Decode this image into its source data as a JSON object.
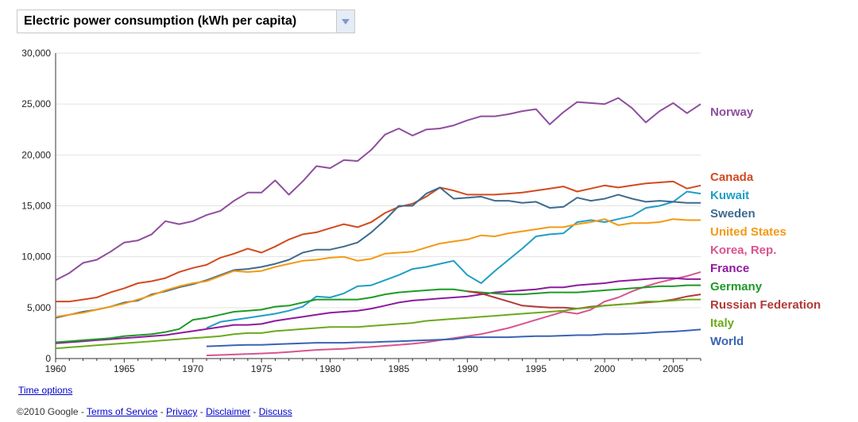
{
  "selector": {
    "label": "Electric power consumption (kWh per capita)"
  },
  "links": {
    "time_options": "Time options"
  },
  "footer": {
    "copyright": "©2010 Google",
    "sep": " - ",
    "terms": "Terms of Service",
    "privacy": "Privacy",
    "disclaimer": "Disclaimer",
    "discuss": "Discuss"
  },
  "chart_data": {
    "type": "line",
    "title": "Electric power consumption (kWh per capita)",
    "xlabel": "",
    "ylabel": "",
    "xlim": [
      1960,
      2007
    ],
    "ylim": [
      0,
      30000
    ],
    "yticks": [
      0,
      5000,
      10000,
      15000,
      20000,
      25000,
      30000
    ],
    "ytick_labels": [
      "0",
      "5,000",
      "10,000",
      "15,000",
      "20,000",
      "25,000",
      "30,000"
    ],
    "xticks": [
      1960,
      1965,
      1970,
      1975,
      1980,
      1985,
      1990,
      1995,
      2000,
      2005
    ],
    "xtick_labels": [
      "1960",
      "1965",
      "1970",
      "1975",
      "1980",
      "1985",
      "1990",
      "1995",
      "2000",
      "2005"
    ],
    "grid": true,
    "legend": "right, labels at line ends",
    "series": [
      {
        "name": "Norway",
        "color": "#8e4e9e",
        "x": [
          1960,
          1961,
          1962,
          1963,
          1964,
          1965,
          1966,
          1967,
          1968,
          1969,
          1970,
          1971,
          1972,
          1973,
          1974,
          1975,
          1976,
          1977,
          1978,
          1979,
          1980,
          1981,
          1982,
          1983,
          1984,
          1985,
          1986,
          1987,
          1988,
          1989,
          1990,
          1991,
          1992,
          1993,
          1994,
          1995,
          1996,
          1997,
          1998,
          1999,
          2000,
          2001,
          2002,
          2003,
          2004,
          2005,
          2006,
          2007
        ],
        "y": [
          7700,
          8400,
          9400,
          9700,
          10500,
          11400,
          11600,
          12200,
          13500,
          13200,
          13500,
          14100,
          14500,
          15500,
          16300,
          16300,
          17500,
          16100,
          17400,
          18900,
          18700,
          19500,
          19400,
          20500,
          22000,
          22600,
          21900,
          22500,
          22600,
          22900,
          23400,
          23800,
          23800,
          24000,
          24300,
          24500,
          23000,
          24200,
          25200,
          25100,
          25000,
          25600,
          24600,
          23200,
          24300,
          25100,
          24100,
          25000
        ]
      },
      {
        "name": "Canada",
        "color": "#d24a1f",
        "x": [
          1960,
          1961,
          1962,
          1963,
          1964,
          1965,
          1966,
          1967,
          1968,
          1969,
          1970,
          1971,
          1972,
          1973,
          1974,
          1975,
          1976,
          1977,
          1978,
          1979,
          1980,
          1981,
          1982,
          1983,
          1984,
          1985,
          1986,
          1987,
          1988,
          1989,
          1990,
          1991,
          1992,
          1993,
          1994,
          1995,
          1996,
          1997,
          1998,
          1999,
          2000,
          2001,
          2002,
          2003,
          2004,
          2005,
          2006,
          2007
        ],
        "y": [
          5600,
          5600,
          5800,
          6000,
          6500,
          6900,
          7400,
          7600,
          7900,
          8500,
          8900,
          9200,
          9900,
          10300,
          10800,
          10400,
          11000,
          11700,
          12200,
          12400,
          12800,
          13200,
          12900,
          13400,
          14300,
          14900,
          15200,
          15900,
          16800,
          16500,
          16100,
          16100,
          16100,
          16200,
          16300,
          16500,
          16700,
          16900,
          16400,
          16700,
          17000,
          16800,
          17000,
          17200,
          17300,
          17400,
          16700,
          17000
        ]
      },
      {
        "name": "Kuwait",
        "color": "#1f9ec4",
        "x": [
          1971,
          1972,
          1973,
          1974,
          1975,
          1976,
          1977,
          1978,
          1979,
          1980,
          1981,
          1982,
          1983,
          1984,
          1985,
          1986,
          1987,
          1988,
          1989,
          1990,
          1991,
          1992,
          1993,
          1994,
          1995,
          1996,
          1997,
          1998,
          1999,
          2000,
          2001,
          2002,
          2003,
          2004,
          2005,
          2006,
          2007
        ],
        "y": [
          3000,
          3600,
          3800,
          4000,
          4200,
          4400,
          4700,
          5100,
          6100,
          6000,
          6400,
          7100,
          7200,
          7700,
          8200,
          8800,
          9000,
          9300,
          9600,
          8200,
          7400,
          8600,
          9700,
          10800,
          12000,
          12200,
          12300,
          13400,
          13600,
          13400,
          13700,
          14000,
          14800,
          15000,
          15400,
          16400,
          16200
        ]
      },
      {
        "name": "Sweden",
        "color": "#3d6b8f",
        "x": [
          1960,
          1961,
          1962,
          1963,
          1964,
          1965,
          1966,
          1967,
          1968,
          1969,
          1970,
          1971,
          1972,
          1973,
          1974,
          1975,
          1976,
          1977,
          1978,
          1979,
          1980,
          1981,
          1982,
          1983,
          1984,
          1985,
          1986,
          1987,
          1988,
          1989,
          1990,
          1991,
          1992,
          1993,
          1994,
          1995,
          1996,
          1997,
          1998,
          1999,
          2000,
          2001,
          2002,
          2003,
          2004,
          2005,
          2006,
          2007
        ],
        "y": [
          4000,
          4300,
          4600,
          4800,
          5100,
          5500,
          5700,
          6300,
          6600,
          7000,
          7300,
          7700,
          8200,
          8700,
          8800,
          9000,
          9300,
          9700,
          10400,
          10700,
          10700,
          11000,
          11400,
          12400,
          13600,
          15000,
          15000,
          16200,
          16800,
          15700,
          15800,
          15900,
          15500,
          15500,
          15300,
          15400,
          14800,
          14900,
          15800,
          15500,
          15700,
          16100,
          15700,
          15400,
          15500,
          15400,
          15300,
          15300
        ]
      },
      {
        "name": "United States",
        "color": "#f29a12",
        "x": [
          1960,
          1961,
          1962,
          1963,
          1964,
          1965,
          1966,
          1967,
          1968,
          1969,
          1970,
          1971,
          1972,
          1973,
          1974,
          1975,
          1976,
          1977,
          1978,
          1979,
          1980,
          1981,
          1982,
          1983,
          1984,
          1985,
          1986,
          1987,
          1988,
          1989,
          1990,
          1991,
          1992,
          1993,
          1994,
          1995,
          1996,
          1997,
          1998,
          1999,
          2000,
          2001,
          2002,
          2003,
          2004,
          2005,
          2006,
          2007
        ],
        "y": [
          4100,
          4300,
          4500,
          4800,
          5100,
          5400,
          5800,
          6200,
          6700,
          7100,
          7400,
          7600,
          8100,
          8600,
          8500,
          8600,
          9000,
          9300,
          9600,
          9700,
          9900,
          10000,
          9600,
          9800,
          10300,
          10400,
          10500,
          10900,
          11300,
          11500,
          11700,
          12100,
          12000,
          12300,
          12500,
          12700,
          12900,
          12900,
          13200,
          13400,
          13700,
          13100,
          13300,
          13300,
          13400,
          13700,
          13600,
          13600
        ]
      },
      {
        "name": "Korea, Rep.",
        "color": "#d9548e",
        "x": [
          1971,
          1972,
          1973,
          1974,
          1975,
          1976,
          1977,
          1978,
          1979,
          1980,
          1981,
          1982,
          1983,
          1984,
          1985,
          1986,
          1987,
          1988,
          1989,
          1990,
          1991,
          1992,
          1993,
          1994,
          1995,
          1996,
          1997,
          1998,
          1999,
          2000,
          2001,
          2002,
          2003,
          2004,
          2005,
          2006,
          2007
        ],
        "y": [
          300,
          350,
          400,
          450,
          500,
          550,
          650,
          750,
          850,
          900,
          950,
          1050,
          1150,
          1250,
          1350,
          1450,
          1600,
          1800,
          2000,
          2200,
          2400,
          2700,
          3000,
          3400,
          3800,
          4200,
          4600,
          4400,
          4800,
          5600,
          6000,
          6600,
          7100,
          7500,
          7800,
          8100,
          8500
        ]
      },
      {
        "name": "France",
        "color": "#8e1a9e",
        "x": [
          1960,
          1961,
          1962,
          1963,
          1964,
          1965,
          1966,
          1967,
          1968,
          1969,
          1970,
          1971,
          1972,
          1973,
          1974,
          1975,
          1976,
          1977,
          1978,
          1979,
          1980,
          1981,
          1982,
          1983,
          1984,
          1985,
          1986,
          1987,
          1988,
          1989,
          1990,
          1991,
          1992,
          1993,
          1994,
          1995,
          1996,
          1997,
          1998,
          1999,
          2000,
          2001,
          2002,
          2003,
          2004,
          2005,
          2006,
          2007
        ],
        "y": [
          1500,
          1600,
          1700,
          1800,
          1900,
          2000,
          2100,
          2200,
          2300,
          2500,
          2700,
          2900,
          3100,
          3300,
          3300,
          3400,
          3700,
          3900,
          4100,
          4300,
          4500,
          4600,
          4700,
          4900,
          5200,
          5500,
          5700,
          5800,
          5900,
          6000,
          6100,
          6300,
          6500,
          6600,
          6700,
          6800,
          7000,
          7000,
          7200,
          7300,
          7400,
          7600,
          7700,
          7800,
          7900,
          7900,
          7800,
          7800
        ]
      },
      {
        "name": "Germany",
        "color": "#1e9a27",
        "x": [
          1960,
          1961,
          1962,
          1963,
          1964,
          1965,
          1966,
          1967,
          1968,
          1969,
          1970,
          1971,
          1972,
          1973,
          1974,
          1975,
          1976,
          1977,
          1978,
          1979,
          1980,
          1981,
          1982,
          1983,
          1984,
          1985,
          1986,
          1987,
          1988,
          1989,
          1990,
          1991,
          1992,
          1993,
          1994,
          1995,
          1996,
          1997,
          1998,
          1999,
          2000,
          2001,
          2002,
          2003,
          2004,
          2005,
          2006,
          2007
        ],
        "y": [
          1600,
          1700,
          1800,
          1900,
          2000,
          2200,
          2300,
          2400,
          2600,
          2900,
          3800,
          4000,
          4300,
          4600,
          4700,
          4800,
          5100,
          5200,
          5500,
          5800,
          5800,
          5800,
          5800,
          6000,
          6300,
          6500,
          6600,
          6700,
          6800,
          6800,
          6600,
          6500,
          6400,
          6300,
          6300,
          6400,
          6500,
          6500,
          6500,
          6600,
          6700,
          6800,
          6900,
          7000,
          7100,
          7100,
          7200,
          7200
        ]
      },
      {
        "name": "Russian Federation",
        "color": "#b03a3a",
        "x": [
          1990,
          1991,
          1992,
          1993,
          1994,
          1995,
          1996,
          1997,
          1998,
          1999,
          2000,
          2001,
          2002,
          2003,
          2004,
          2005,
          2006,
          2007
        ],
        "y": [
          6600,
          6400,
          6000,
          5600,
          5200,
          5100,
          5000,
          5000,
          4900,
          5100,
          5200,
          5300,
          5400,
          5500,
          5600,
          5800,
          6100,
          6300
        ]
      },
      {
        "name": "Italy",
        "color": "#6aaa1d",
        "x": [
          1960,
          1961,
          1962,
          1963,
          1964,
          1965,
          1966,
          1967,
          1968,
          1969,
          1970,
          1971,
          1972,
          1973,
          1974,
          1975,
          1976,
          1977,
          1978,
          1979,
          1980,
          1981,
          1982,
          1983,
          1984,
          1985,
          1986,
          1987,
          1988,
          1989,
          1990,
          1991,
          1992,
          1993,
          1994,
          1995,
          1996,
          1997,
          1998,
          1999,
          2000,
          2001,
          2002,
          2003,
          2004,
          2005,
          2006,
          2007
        ],
        "y": [
          1000,
          1100,
          1200,
          1300,
          1400,
          1500,
          1600,
          1700,
          1800,
          1900,
          2000,
          2100,
          2200,
          2400,
          2500,
          2500,
          2700,
          2800,
          2900,
          3000,
          3100,
          3100,
          3100,
          3200,
          3300,
          3400,
          3500,
          3700,
          3800,
          3900,
          4000,
          4100,
          4200,
          4300,
          4400,
          4500,
          4600,
          4700,
          4900,
          5000,
          5200,
          5300,
          5400,
          5600,
          5600,
          5700,
          5800,
          5800
        ]
      },
      {
        "name": "World",
        "color": "#3b63b4",
        "x": [
          1971,
          1972,
          1973,
          1974,
          1975,
          1976,
          1977,
          1978,
          1979,
          1980,
          1981,
          1982,
          1983,
          1984,
          1985,
          1986,
          1987,
          1988,
          1989,
          1990,
          1991,
          1992,
          1993,
          1994,
          1995,
          1996,
          1997,
          1998,
          1999,
          2000,
          2001,
          2002,
          2003,
          2004,
          2005,
          2006,
          2007
        ],
        "y": [
          1200,
          1250,
          1300,
          1350,
          1350,
          1400,
          1450,
          1500,
          1550,
          1550,
          1550,
          1600,
          1600,
          1650,
          1700,
          1750,
          1800,
          1850,
          1900,
          2100,
          2100,
          2100,
          2100,
          2150,
          2200,
          2200,
          2250,
          2300,
          2300,
          2400,
          2400,
          2450,
          2500,
          2600,
          2650,
          2750,
          2850
        ]
      }
    ]
  }
}
